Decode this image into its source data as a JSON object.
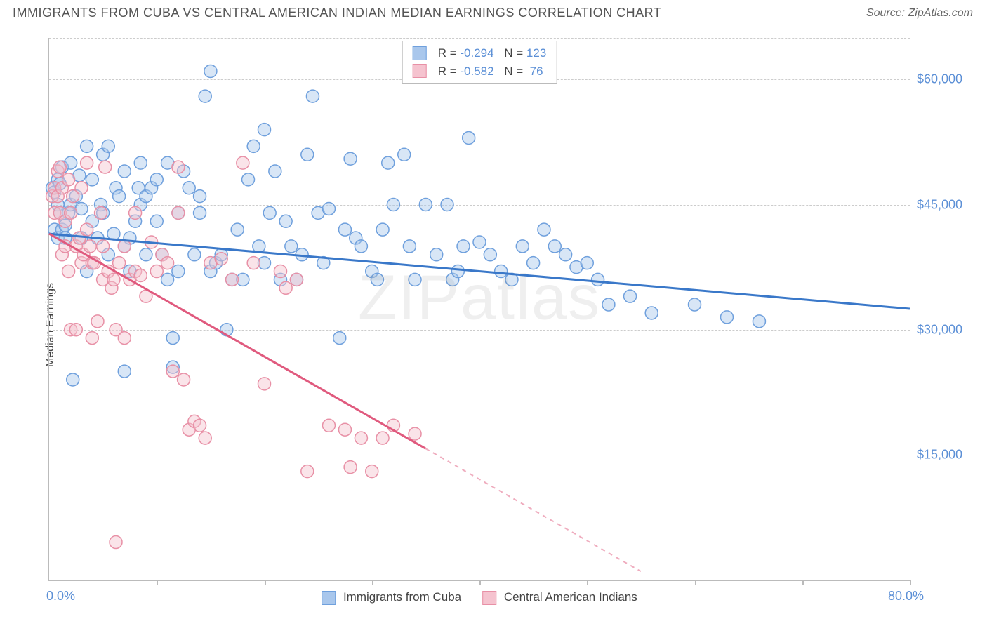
{
  "header": {
    "title": "IMMIGRANTS FROM CUBA VS CENTRAL AMERICAN INDIAN MEDIAN EARNINGS CORRELATION CHART",
    "source": "Source: ZipAtlas.com"
  },
  "chart": {
    "type": "scatter",
    "ylabel": "Median Earnings",
    "xlim": [
      0,
      80
    ],
    "ylim": [
      0,
      65000
    ],
    "x_lim_labels": {
      "min": "0.0%",
      "max": "80.0%"
    },
    "y_ticks": [
      {
        "value": 15000,
        "label": "$15,000"
      },
      {
        "value": 30000,
        "label": "$30,000"
      },
      {
        "value": 45000,
        "label": "$45,000"
      },
      {
        "value": 60000,
        "label": "$60,000"
      }
    ],
    "x_tick_positions": [
      0,
      10,
      20,
      30,
      40,
      50,
      60,
      70,
      80
    ],
    "watermark": "ZIPatlas",
    "background_color": "#ffffff",
    "grid_color": "#cccccc",
    "axis_color": "#bbbbbb",
    "marker_radius": 9,
    "marker_opacity": 0.45,
    "series": [
      {
        "name": "Immigrants from Cuba",
        "color_fill": "#a9c7ec",
        "color_stroke": "#6fa0dd",
        "line_color": "#3a78c9",
        "R": "-0.294",
        "N": "123",
        "trend": {
          "x1": 0,
          "y1": 41500,
          "x2": 80,
          "y2": 32500,
          "solid_until_x": 80
        },
        "points": [
          [
            0.3,
            47000
          ],
          [
            0.5,
            42000
          ],
          [
            0.5,
            46500
          ],
          [
            0.8,
            48000
          ],
          [
            0.8,
            45000
          ],
          [
            0.8,
            41000
          ],
          [
            1,
            47500
          ],
          [
            1,
            44000
          ],
          [
            1.2,
            49500
          ],
          [
            1.2,
            42000
          ],
          [
            1.5,
            42500
          ],
          [
            1.5,
            41000
          ],
          [
            1.8,
            44000
          ],
          [
            2,
            45000
          ],
          [
            2,
            50000
          ],
          [
            2.2,
            24000
          ],
          [
            2.5,
            46000
          ],
          [
            2.8,
            48500
          ],
          [
            3,
            41000
          ],
          [
            3,
            44500
          ],
          [
            3.5,
            52000
          ],
          [
            3.5,
            37000
          ],
          [
            4,
            48000
          ],
          [
            4,
            43000
          ],
          [
            4.5,
            41000
          ],
          [
            4.8,
            45000
          ],
          [
            5,
            44000
          ],
          [
            5,
            51000
          ],
          [
            5.5,
            52000
          ],
          [
            5.5,
            39000
          ],
          [
            6,
            41500
          ],
          [
            6.2,
            47000
          ],
          [
            6.5,
            46000
          ],
          [
            7,
            49000
          ],
          [
            7,
            40000
          ],
          [
            7.5,
            41000
          ],
          [
            7.5,
            37000
          ],
          [
            7,
            25000
          ],
          [
            8,
            43000
          ],
          [
            8.3,
            47000
          ],
          [
            8.5,
            50000
          ],
          [
            8.5,
            45000
          ],
          [
            9,
            39000
          ],
          [
            9,
            46000
          ],
          [
            9.5,
            47000
          ],
          [
            10,
            43000
          ],
          [
            10,
            48000
          ],
          [
            10.5,
            39000
          ],
          [
            11,
            50000
          ],
          [
            11,
            36000
          ],
          [
            11.5,
            29000
          ],
          [
            11.5,
            25500
          ],
          [
            12,
            37000
          ],
          [
            12,
            44000
          ],
          [
            12.5,
            49000
          ],
          [
            13,
            47000
          ],
          [
            13.5,
            39000
          ],
          [
            14,
            44000
          ],
          [
            14,
            46000
          ],
          [
            14.5,
            58000
          ],
          [
            15,
            61000
          ],
          [
            15,
            37000
          ],
          [
            15.5,
            38000
          ],
          [
            16,
            39000
          ],
          [
            16.5,
            30000
          ],
          [
            17,
            36000
          ],
          [
            17.5,
            42000
          ],
          [
            18,
            36000
          ],
          [
            18.5,
            48000
          ],
          [
            19,
            52000
          ],
          [
            19.5,
            40000
          ],
          [
            20,
            54000
          ],
          [
            20,
            38000
          ],
          [
            20.5,
            44000
          ],
          [
            21,
            49000
          ],
          [
            21.5,
            36000
          ],
          [
            22,
            43000
          ],
          [
            22.5,
            40000
          ],
          [
            23,
            36000
          ],
          [
            23.5,
            39000
          ],
          [
            24,
            51000
          ],
          [
            24.5,
            58000
          ],
          [
            25,
            44000
          ],
          [
            25.5,
            38000
          ],
          [
            26,
            44500
          ],
          [
            27,
            29000
          ],
          [
            27.5,
            42000
          ],
          [
            28,
            50500
          ],
          [
            28.5,
            41000
          ],
          [
            29,
            40000
          ],
          [
            30,
            37000
          ],
          [
            30.5,
            36000
          ],
          [
            31,
            42000
          ],
          [
            31.5,
            50000
          ],
          [
            32,
            45000
          ],
          [
            33,
            51000
          ],
          [
            33.5,
            40000
          ],
          [
            34,
            36000
          ],
          [
            35,
            45000
          ],
          [
            36,
            39000
          ],
          [
            37,
            45000
          ],
          [
            37.5,
            36000
          ],
          [
            38,
            37000
          ],
          [
            38.5,
            40000
          ],
          [
            39,
            53000
          ],
          [
            40,
            40500
          ],
          [
            41,
            39000
          ],
          [
            42,
            37000
          ],
          [
            43,
            36000
          ],
          [
            44,
            40000
          ],
          [
            45,
            38000
          ],
          [
            46,
            42000
          ],
          [
            47,
            40000
          ],
          [
            48,
            39000
          ],
          [
            49,
            37500
          ],
          [
            50,
            38000
          ],
          [
            51,
            36000
          ],
          [
            52,
            33000
          ],
          [
            54,
            34000
          ],
          [
            56,
            32000
          ],
          [
            60,
            33000
          ],
          [
            63,
            31500
          ],
          [
            66,
            31000
          ]
        ]
      },
      {
        "name": "Central American Indians",
        "color_fill": "#f5c3cf",
        "color_stroke": "#e890a6",
        "line_color": "#e05a7e",
        "R": "-0.582",
        "N": "76",
        "trend": {
          "x1": 0,
          "y1": 41500,
          "x2": 55,
          "y2": 1000,
          "solid_until_x": 35
        },
        "points": [
          [
            0.3,
            46000
          ],
          [
            0.5,
            44000
          ],
          [
            0.5,
            47000
          ],
          [
            0.8,
            46000
          ],
          [
            0.8,
            49000
          ],
          [
            1,
            44000
          ],
          [
            1,
            49500
          ],
          [
            1.2,
            47000
          ],
          [
            1.2,
            39000
          ],
          [
            1.5,
            40000
          ],
          [
            1.5,
            43000
          ],
          [
            1.8,
            48000
          ],
          [
            1.8,
            37000
          ],
          [
            2,
            44000
          ],
          [
            2,
            30000
          ],
          [
            2.2,
            46000
          ],
          [
            2.5,
            40000
          ],
          [
            2.5,
            30000
          ],
          [
            2.8,
            41000
          ],
          [
            3,
            38000
          ],
          [
            3,
            47000
          ],
          [
            3.2,
            39000
          ],
          [
            3.5,
            42000
          ],
          [
            3.5,
            50000
          ],
          [
            3.8,
            40000
          ],
          [
            4,
            38000
          ],
          [
            4,
            29000
          ],
          [
            4.2,
            38000
          ],
          [
            4.5,
            31000
          ],
          [
            4.8,
            44000
          ],
          [
            5,
            36000
          ],
          [
            5,
            40000
          ],
          [
            5.2,
            49500
          ],
          [
            5.5,
            37000
          ],
          [
            5.8,
            35000
          ],
          [
            6,
            36000
          ],
          [
            6.2,
            30000
          ],
          [
            6.2,
            4500
          ],
          [
            6.5,
            38000
          ],
          [
            7,
            40000
          ],
          [
            7,
            29000
          ],
          [
            7.5,
            36000
          ],
          [
            8,
            37000
          ],
          [
            8,
            44000
          ],
          [
            8.5,
            36500
          ],
          [
            9,
            34000
          ],
          [
            9.5,
            40500
          ],
          [
            10,
            37000
          ],
          [
            10.5,
            39000
          ],
          [
            11,
            38000
          ],
          [
            11.5,
            25000
          ],
          [
            12,
            49500
          ],
          [
            12,
            44000
          ],
          [
            12.5,
            24000
          ],
          [
            13,
            18000
          ],
          [
            13.5,
            19000
          ],
          [
            14,
            18500
          ],
          [
            14.5,
            17000
          ],
          [
            15,
            38000
          ],
          [
            16,
            38500
          ],
          [
            17,
            36000
          ],
          [
            18,
            50000
          ],
          [
            19,
            38000
          ],
          [
            20,
            23500
          ],
          [
            21.5,
            37000
          ],
          [
            22,
            35000
          ],
          [
            23,
            36000
          ],
          [
            24,
            13000
          ],
          [
            26,
            18500
          ],
          [
            27.5,
            18000
          ],
          [
            28,
            13500
          ],
          [
            29,
            17000
          ],
          [
            30,
            13000
          ],
          [
            31,
            17000
          ],
          [
            32,
            18500
          ],
          [
            34,
            17500
          ]
        ]
      }
    ]
  }
}
